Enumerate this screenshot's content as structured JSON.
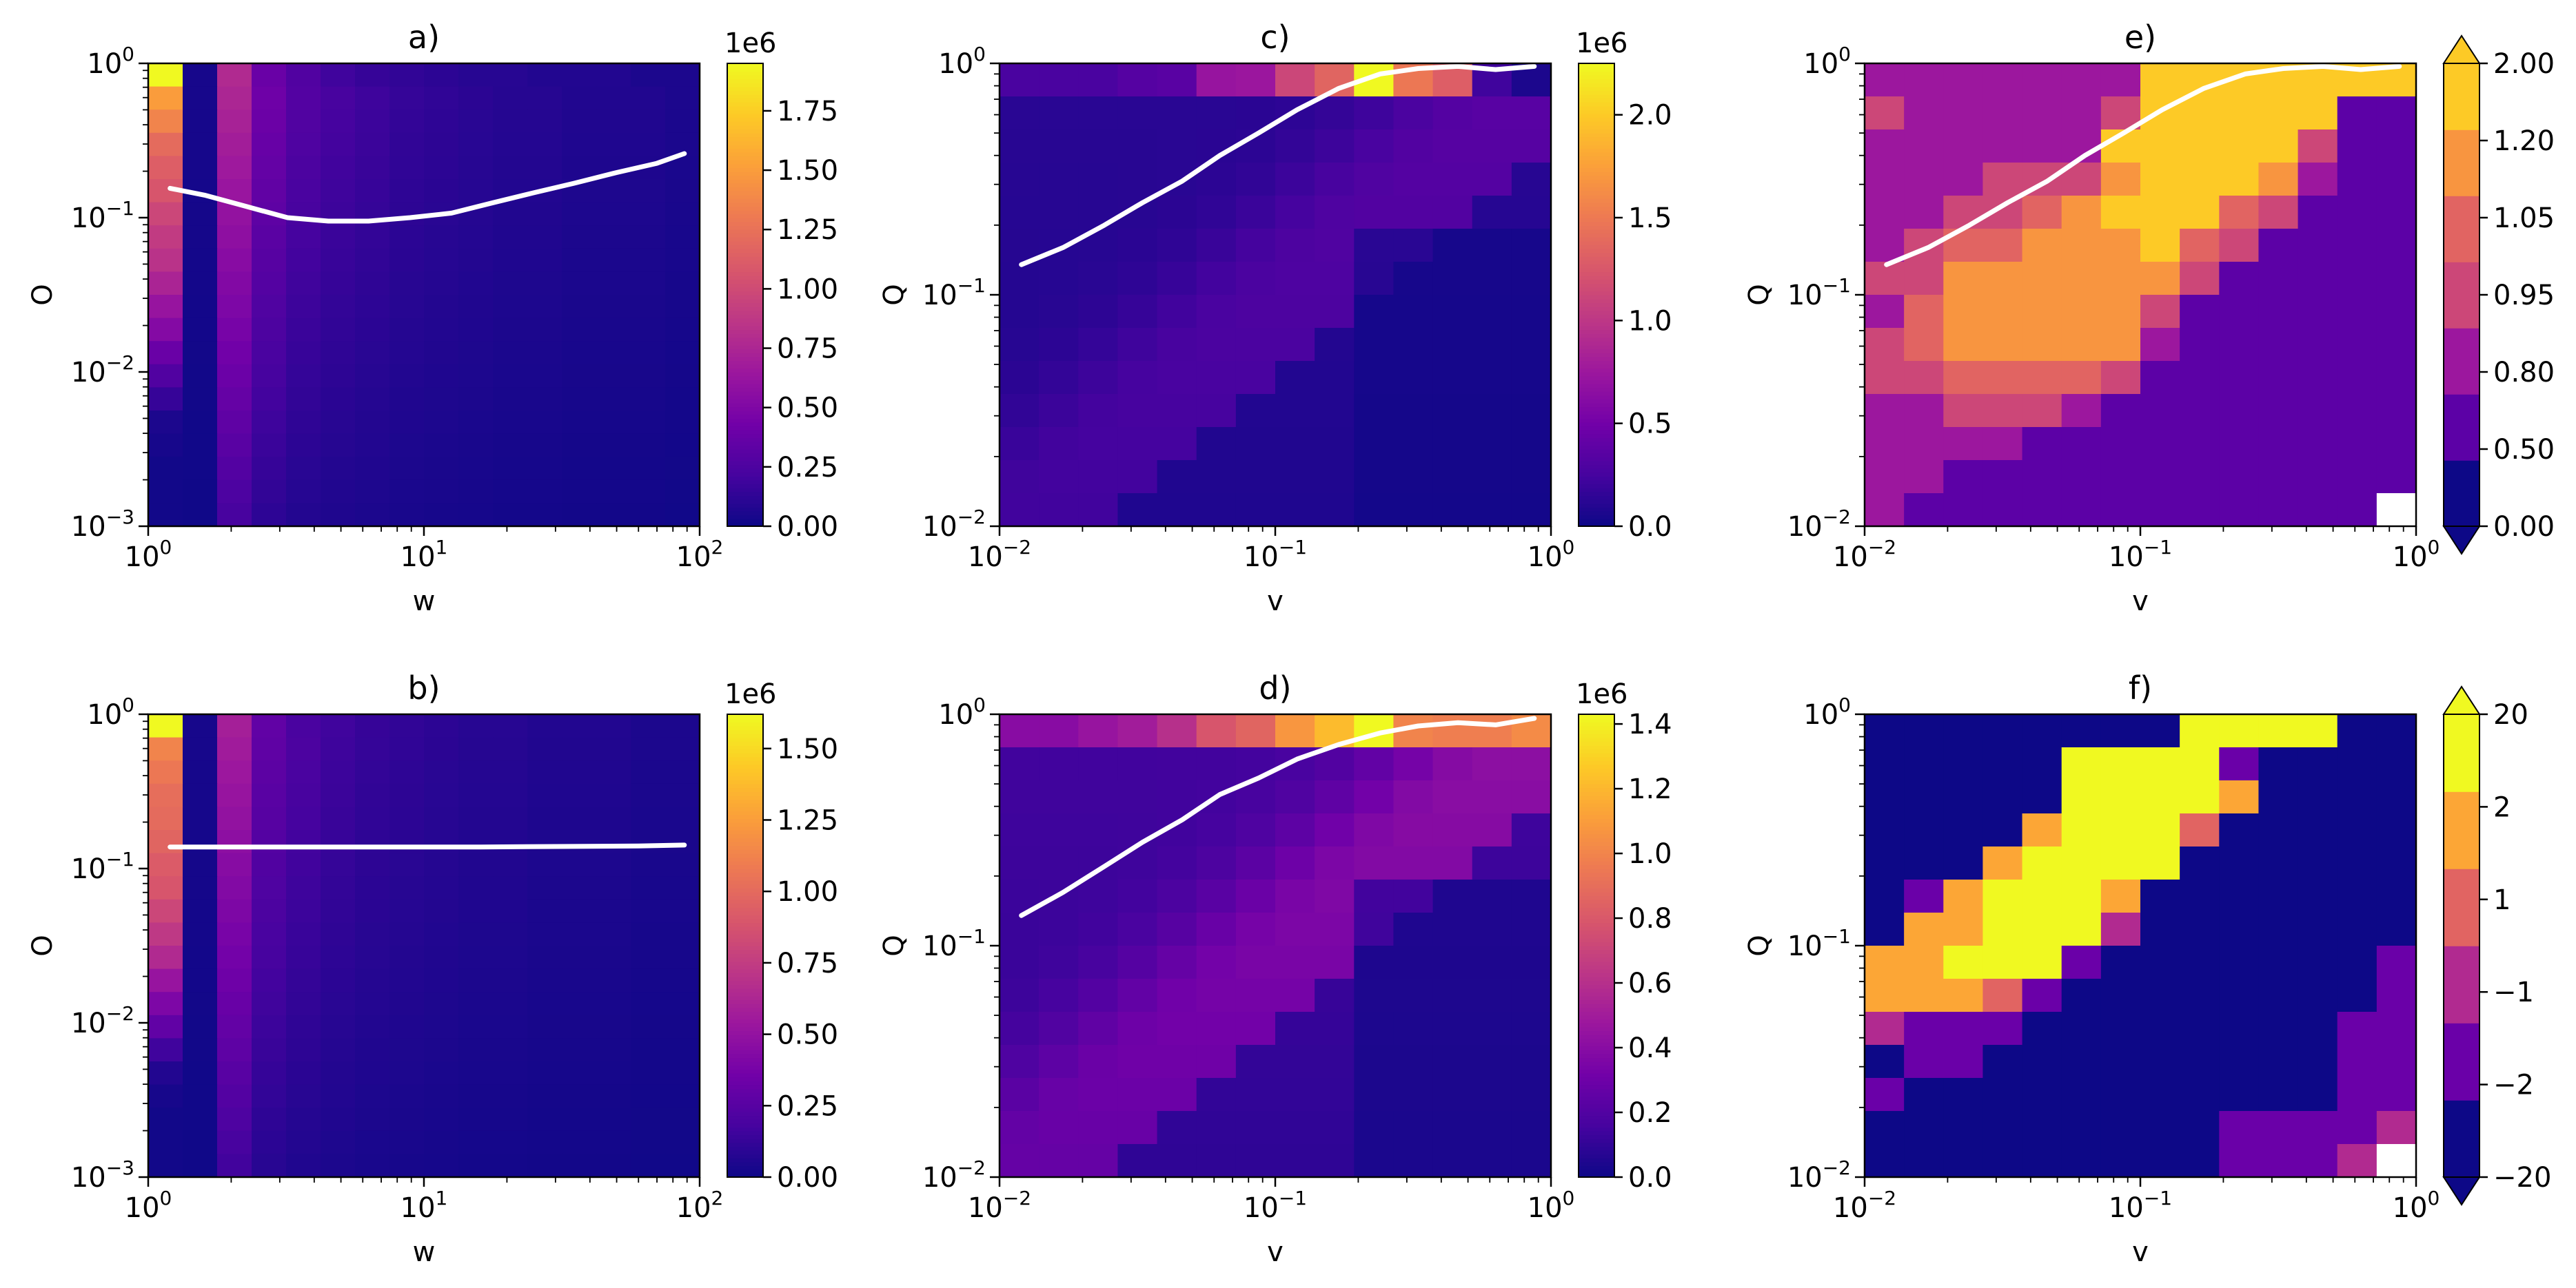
{
  "figure": {
    "background": "#ffffff",
    "colormap": [
      "#0d0887",
      "#46039f",
      "#7201a8",
      "#9c179e",
      "#bd3786",
      "#d8576b",
      "#ed7953",
      "#fb9f3a",
      "#fdca26",
      "#f0f921"
    ],
    "line_color": "#ffffff"
  },
  "chart_data": [
    {
      "id": "a",
      "type": "heatmap",
      "title": "a)",
      "xlabel": "w",
      "ylabel": "O",
      "xscale": "log",
      "yscale": "log",
      "xlim": [
        1,
        100
      ],
      "ylim": [
        0.001,
        1
      ],
      "x_ticks": [
        {
          "base": "10",
          "exp": "0",
          "value": 1
        },
        {
          "base": "10",
          "exp": "1",
          "value": 10
        },
        {
          "base": "10",
          "exp": "2",
          "value": 100
        }
      ],
      "y_ticks": [
        {
          "base": "10",
          "exp": "−3",
          "value": 0.001
        },
        {
          "base": "10",
          "exp": "−2",
          "value": 0.01
        },
        {
          "base": "10",
          "exp": "−1",
          "value": 0.1
        },
        {
          "base": "10",
          "exp": "0",
          "value": 1
        }
      ],
      "grid": {
        "nx": 16,
        "ny": 20
      },
      "pattern": "columns",
      "column_peaks": [
        0.12,
        0.02,
        0.4,
        0.22,
        0.15,
        0.12,
        0.1,
        0.08,
        0.07,
        0.06,
        0.05,
        0.05,
        0.04,
        0.04,
        0.04,
        0.03
      ],
      "top_row": [
        1.0,
        0.02,
        0.4,
        0.2,
        0.14,
        0.1,
        0.08,
        0.07,
        0.06,
        0.05,
        0.05,
        0.04,
        0.04,
        0.04,
        0.03,
        0.03
      ],
      "first_column": [
        0.98,
        0.77,
        0.7,
        0.62,
        0.58,
        0.55,
        0.5,
        0.46,
        0.43,
        0.38,
        0.32,
        0.27,
        0.2,
        0.14,
        0.08,
        0.03,
        0.02,
        0.01,
        0.01,
        0.01
      ],
      "line": {
        "x": [
          1.2,
          1.6,
          2.2,
          3.2,
          4.5,
          6.3,
          8.9,
          12.6,
          17.8,
          25,
          35,
          50,
          70,
          88
        ],
        "y": [
          0.155,
          0.14,
          0.12,
          0.1,
          0.095,
          0.095,
          0.1,
          0.107,
          0.125,
          0.145,
          0.167,
          0.196,
          0.225,
          0.26
        ]
      },
      "colorbar": {
        "type": "continuous",
        "multiplier": "1e6",
        "vmin": 0,
        "vmax": 1.95,
        "ticks": [
          "0.00",
          "0.25",
          "0.50",
          "0.75",
          "1.00",
          "1.25",
          "1.50",
          "1.75"
        ]
      }
    },
    {
      "id": "b",
      "type": "heatmap",
      "title": "b)",
      "xlabel": "w",
      "ylabel": "O",
      "xscale": "log",
      "yscale": "log",
      "xlim": [
        1,
        100
      ],
      "ylim": [
        0.001,
        1
      ],
      "x_ticks": [
        {
          "base": "10",
          "exp": "0",
          "value": 1
        },
        {
          "base": "10",
          "exp": "1",
          "value": 10
        },
        {
          "base": "10",
          "exp": "2",
          "value": 100
        }
      ],
      "y_ticks": [
        {
          "base": "10",
          "exp": "−3",
          "value": 0.001
        },
        {
          "base": "10",
          "exp": "−2",
          "value": 0.01
        },
        {
          "base": "10",
          "exp": "−1",
          "value": 0.1
        },
        {
          "base": "10",
          "exp": "0",
          "value": 1
        }
      ],
      "grid": {
        "nx": 16,
        "ny": 20
      },
      "pattern": "columns",
      "column_peaks": [
        0.12,
        0.02,
        0.36,
        0.18,
        0.13,
        0.1,
        0.08,
        0.07,
        0.06,
        0.05,
        0.05,
        0.04,
        0.04,
        0.04,
        0.03,
        0.03
      ],
      "top_row": [
        1.0,
        0.02,
        0.36,
        0.18,
        0.12,
        0.1,
        0.08,
        0.07,
        0.06,
        0.05,
        0.05,
        0.04,
        0.04,
        0.04,
        0.03,
        0.03
      ],
      "first_column": [
        0.98,
        0.7,
        0.66,
        0.63,
        0.62,
        0.6,
        0.57,
        0.55,
        0.5,
        0.45,
        0.4,
        0.32,
        0.25,
        0.18,
        0.1,
        0.04,
        0.02,
        0.01,
        0.01,
        0.01
      ],
      "line": {
        "x": [
          1.2,
          2,
          4,
          8,
          16,
          30,
          60,
          88
        ],
        "y": [
          0.138,
          0.138,
          0.138,
          0.138,
          0.138,
          0.139,
          0.14,
          0.142
        ]
      },
      "colorbar": {
        "type": "continuous",
        "multiplier": "1e6",
        "vmin": 0,
        "vmax": 1.62,
        "ticks": [
          "0.00",
          "0.25",
          "0.50",
          "0.75",
          "1.00",
          "1.25",
          "1.50"
        ]
      }
    },
    {
      "id": "c",
      "type": "heatmap",
      "title": "c)",
      "xlabel": "v",
      "ylabel": "Q",
      "xscale": "log",
      "yscale": "log",
      "xlim": [
        0.01,
        1
      ],
      "ylim": [
        0.01,
        1
      ],
      "x_ticks": [
        {
          "base": "10",
          "exp": "−2",
          "value": 0.01
        },
        {
          "base": "10",
          "exp": "−1",
          "value": 0.1
        },
        {
          "base": "10",
          "exp": "0",
          "value": 1
        }
      ],
      "y_ticks": [
        {
          "base": "10",
          "exp": "−2",
          "value": 0.01
        },
        {
          "base": "10",
          "exp": "−1",
          "value": 0.1
        },
        {
          "base": "10",
          "exp": "0",
          "value": 1
        }
      ],
      "grid": {
        "nx": 14,
        "ny": 14
      },
      "pattern": "band",
      "top_row": [
        0.12,
        0.12,
        0.12,
        0.15,
        0.16,
        0.32,
        0.33,
        0.5,
        0.6,
        1.0,
        0.66,
        0.58,
        0.1,
        0.03
      ],
      "band_scale": 0.16,
      "line": {
        "x": [
          0.012,
          0.017,
          0.024,
          0.033,
          0.046,
          0.063,
          0.087,
          0.12,
          0.17,
          0.24,
          0.33,
          0.46,
          0.63,
          0.87
        ],
        "y": [
          0.135,
          0.16,
          0.2,
          0.25,
          0.31,
          0.4,
          0.5,
          0.63,
          0.78,
          0.9,
          0.95,
          0.97,
          0.94,
          0.97
        ]
      },
      "colorbar": {
        "type": "continuous",
        "multiplier": "1e6",
        "vmin": 0,
        "vmax": 2.25,
        "ticks": [
          "0.0",
          "0.5",
          "1.0",
          "1.5",
          "2.0"
        ]
      }
    },
    {
      "id": "d",
      "type": "heatmap",
      "title": "d)",
      "xlabel": "v",
      "ylabel": "Q",
      "xscale": "log",
      "yscale": "log",
      "xlim": [
        0.01,
        1
      ],
      "ylim": [
        0.01,
        1
      ],
      "x_ticks": [
        {
          "base": "10",
          "exp": "−2",
          "value": 0.01
        },
        {
          "base": "10",
          "exp": "−1",
          "value": 0.1
        },
        {
          "base": "10",
          "exp": "0",
          "value": 1
        }
      ],
      "y_ticks": [
        {
          "base": "10",
          "exp": "−2",
          "value": 0.01
        },
        {
          "base": "10",
          "exp": "−1",
          "value": 0.1
        },
        {
          "base": "10",
          "exp": "0",
          "value": 1
        }
      ],
      "grid": {
        "nx": 14,
        "ny": 14
      },
      "pattern": "band",
      "top_row": [
        0.28,
        0.28,
        0.32,
        0.35,
        0.42,
        0.55,
        0.6,
        0.75,
        0.85,
        1.0,
        0.7,
        0.68,
        0.68,
        0.72
      ],
      "band_scale": 0.3,
      "line": {
        "x": [
          0.012,
          0.017,
          0.024,
          0.033,
          0.046,
          0.063,
          0.087,
          0.12,
          0.17,
          0.24,
          0.33,
          0.46,
          0.63,
          0.87
        ],
        "y": [
          0.135,
          0.17,
          0.22,
          0.28,
          0.35,
          0.45,
          0.53,
          0.64,
          0.74,
          0.83,
          0.89,
          0.92,
          0.9,
          0.96
        ]
      },
      "colorbar": {
        "type": "continuous",
        "multiplier": "1e6",
        "vmin": 0,
        "vmax": 1.43,
        "ticks": [
          "0.0",
          "0.2",
          "0.4",
          "0.6",
          "0.8",
          "1.0",
          "1.2",
          "1.4"
        ]
      }
    },
    {
      "id": "e",
      "type": "heatmap",
      "title": "e)",
      "xlabel": "v",
      "ylabel": "Q",
      "xscale": "log",
      "yscale": "log",
      "xlim": [
        0.01,
        1
      ],
      "ylim": [
        0.01,
        1
      ],
      "x_ticks": [
        {
          "base": "10",
          "exp": "−2",
          "value": 0.01
        },
        {
          "base": "10",
          "exp": "−1",
          "value": 0.1
        },
        {
          "base": "10",
          "exp": "0",
          "value": 1
        }
      ],
      "y_ticks": [
        {
          "base": "10",
          "exp": "−2",
          "value": 0.01
        },
        {
          "base": "10",
          "exp": "−1",
          "value": 0.1
        },
        {
          "base": "10",
          "exp": "0",
          "value": 1
        }
      ],
      "grid": {
        "nx": 14,
        "ny": 14
      },
      "pattern": "categorical",
      "palette": [
        "#0d0887",
        "#5c01a6",
        "#9c179e",
        "#cc4778",
        "#e16462",
        "#f89540",
        "#fdca26"
      ],
      "cells": [
        [
          2,
          2,
          2,
          2,
          2,
          2,
          2,
          6,
          6,
          6,
          6,
          6,
          6,
          6
        ],
        [
          3,
          2,
          2,
          2,
          2,
          2,
          3,
          6,
          6,
          6,
          6,
          6,
          1,
          1
        ],
        [
          2,
          2,
          2,
          2,
          2,
          2,
          6,
          6,
          6,
          6,
          6,
          3,
          1,
          1
        ],
        [
          2,
          2,
          2,
          3,
          3,
          3,
          5,
          6,
          6,
          6,
          5,
          2,
          1,
          1
        ],
        [
          2,
          2,
          3,
          3,
          4,
          5,
          6,
          6,
          6,
          4,
          3,
          1,
          1,
          1
        ],
        [
          2,
          3,
          4,
          4,
          5,
          5,
          5,
          6,
          4,
          3,
          1,
          1,
          1,
          1
        ],
        [
          3,
          3,
          5,
          5,
          5,
          5,
          5,
          5,
          3,
          1,
          1,
          1,
          1,
          1
        ],
        [
          2,
          4,
          5,
          5,
          5,
          5,
          5,
          3,
          1,
          1,
          1,
          1,
          1,
          1
        ],
        [
          3,
          4,
          5,
          5,
          5,
          5,
          5,
          2,
          1,
          1,
          1,
          1,
          1,
          1
        ],
        [
          3,
          3,
          4,
          4,
          4,
          4,
          3,
          1,
          1,
          1,
          1,
          1,
          1,
          1
        ],
        [
          2,
          2,
          3,
          3,
          3,
          2,
          1,
          1,
          1,
          1,
          1,
          1,
          1,
          1
        ],
        [
          2,
          2,
          2,
          2,
          1,
          1,
          1,
          1,
          1,
          1,
          1,
          1,
          1,
          1
        ],
        [
          2,
          2,
          1,
          1,
          1,
          1,
          1,
          1,
          1,
          1,
          1,
          1,
          1,
          1
        ],
        [
          2,
          1,
          1,
          1,
          1,
          1,
          1,
          1,
          1,
          1,
          1,
          1,
          1,
          -1
        ]
      ],
      "line": {
        "x": [
          0.012,
          0.017,
          0.024,
          0.033,
          0.046,
          0.063,
          0.087,
          0.12,
          0.17,
          0.24,
          0.33,
          0.46,
          0.63,
          0.87
        ],
        "y": [
          0.135,
          0.16,
          0.2,
          0.25,
          0.31,
          0.4,
          0.5,
          0.63,
          0.78,
          0.9,
          0.95,
          0.97,
          0.94,
          0.97
        ]
      },
      "colorbar": {
        "type": "discrete",
        "extend": "both",
        "ticks": [
          "0.00",
          "0.50",
          "0.80",
          "0.95",
          "1.05",
          "1.20",
          "2.00"
        ]
      }
    },
    {
      "id": "f",
      "type": "heatmap",
      "title": "f)",
      "xlabel": "v",
      "ylabel": "Q",
      "xscale": "log",
      "yscale": "log",
      "xlim": [
        0.01,
        1
      ],
      "ylim": [
        0.01,
        1
      ],
      "x_ticks": [
        {
          "base": "10",
          "exp": "−2",
          "value": 0.01
        },
        {
          "base": "10",
          "exp": "−1",
          "value": 0.1
        },
        {
          "base": "10",
          "exp": "0",
          "value": 1
        }
      ],
      "y_ticks": [
        {
          "base": "10",
          "exp": "−2",
          "value": 0.01
        },
        {
          "base": "10",
          "exp": "−1",
          "value": 0.1
        },
        {
          "base": "10",
          "exp": "0",
          "value": 1
        }
      ],
      "grid": {
        "nx": 14,
        "ny": 14
      },
      "pattern": "categorical",
      "palette": [
        "#0d0887",
        "#6a00a8",
        "#b12a90",
        "#e16462",
        "#fca636",
        "#f0f921"
      ],
      "cells": [
        [
          0,
          0,
          0,
          0,
          0,
          0,
          0,
          0,
          5,
          5,
          5,
          5,
          0,
          0
        ],
        [
          0,
          0,
          0,
          0,
          0,
          5,
          5,
          5,
          5,
          1,
          0,
          0,
          0,
          0
        ],
        [
          0,
          0,
          0,
          0,
          0,
          5,
          5,
          5,
          5,
          4,
          0,
          0,
          0,
          0
        ],
        [
          0,
          0,
          0,
          0,
          4,
          5,
          5,
          5,
          3,
          0,
          0,
          0,
          0,
          0
        ],
        [
          0,
          0,
          0,
          4,
          5,
          5,
          5,
          5,
          0,
          0,
          0,
          0,
          0,
          0
        ],
        [
          0,
          1,
          4,
          5,
          5,
          5,
          4,
          0,
          0,
          0,
          0,
          0,
          0,
          0
        ],
        [
          0,
          4,
          4,
          5,
          5,
          5,
          2,
          0,
          0,
          0,
          0,
          0,
          0,
          0
        ],
        [
          4,
          4,
          5,
          5,
          5,
          1,
          0,
          0,
          0,
          0,
          0,
          0,
          0,
          1
        ],
        [
          4,
          4,
          4,
          3,
          1,
          0,
          0,
          0,
          0,
          0,
          0,
          0,
          0,
          1
        ],
        [
          2,
          1,
          1,
          1,
          0,
          0,
          0,
          0,
          0,
          0,
          0,
          0,
          1,
          1
        ],
        [
          0,
          1,
          1,
          0,
          0,
          0,
          0,
          0,
          0,
          0,
          0,
          0,
          1,
          1
        ],
        [
          1,
          0,
          0,
          0,
          0,
          0,
          0,
          0,
          0,
          0,
          0,
          0,
          1,
          1
        ],
        [
          0,
          0,
          0,
          0,
          0,
          0,
          0,
          0,
          0,
          1,
          1,
          1,
          1,
          2
        ],
        [
          0,
          0,
          0,
          0,
          0,
          0,
          0,
          0,
          0,
          1,
          1,
          1,
          2,
          -1
        ]
      ],
      "colorbar": {
        "type": "discrete",
        "extend": "both",
        "ticks": [
          "−20",
          "−2",
          "−1",
          "1",
          "2",
          "20"
        ]
      }
    }
  ]
}
